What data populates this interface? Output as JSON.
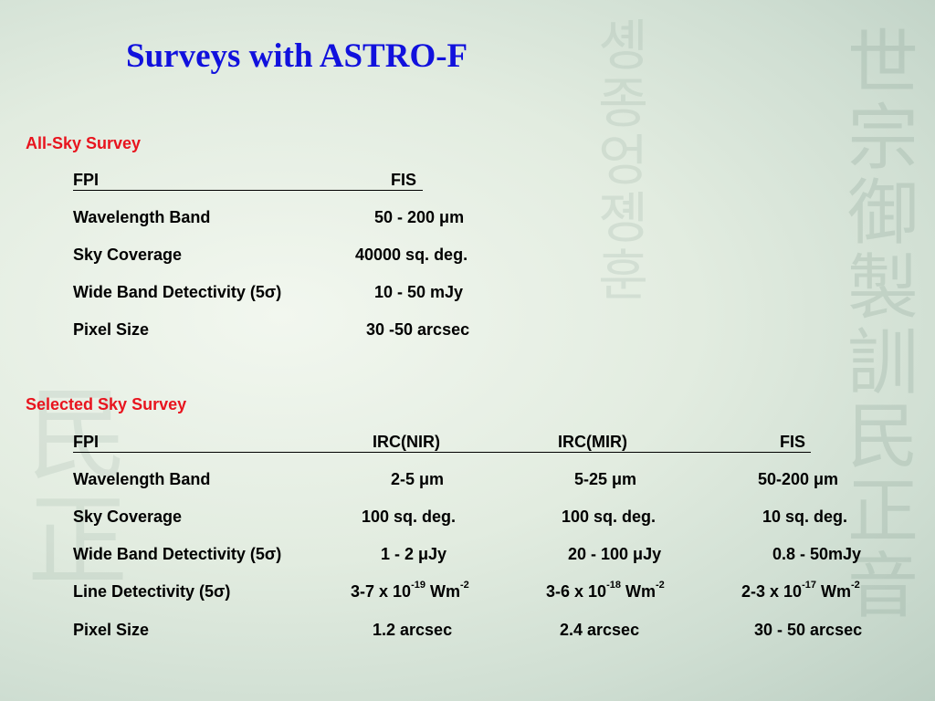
{
  "title": "Surveys with ASTRO-F",
  "all_sky": {
    "heading": "All-Sky Survey",
    "header": {
      "fpi": "FPI",
      "fis": "FIS"
    },
    "rows": [
      {
        "label": "Wavelength Band",
        "value": "50 - 200 μm"
      },
      {
        "label": "Sky Coverage",
        "value": "40000 sq. deg."
      },
      {
        "label": "Wide Band Detectivity (5σ)",
        "value": "10 - 50 mJy"
      },
      {
        "label": "Pixel Size",
        "value": "30 -50 arcsec"
      }
    ]
  },
  "selected": {
    "heading": "Selected Sky Survey",
    "header": {
      "fpi": "FPI",
      "nir": "IRC(NIR)",
      "mir": "IRC(MIR)",
      "fis": "FIS"
    },
    "rows": [
      {
        "label": "Wavelength Band",
        "nir": "2-5 μm",
        "mir": "5-25 μm",
        "fis": "50-200 μm"
      },
      {
        "label": "Sky Coverage",
        "nir": "100 sq. deg.",
        "mir": "100 sq. deg.",
        "fis": "10 sq. deg."
      },
      {
        "label": "Wide Band Detectivity (5σ)",
        "nir": "1 - 2 μJy",
        "mir": "20 - 100 μJy",
        "fis": "0.8 - 50mJy"
      }
    ],
    "line_detectivity": {
      "label": "Line Detectivity (5σ)",
      "nir": {
        "base": "3-7 x 10",
        "exp": "-19",
        "unit": " Wm",
        "unit_exp": "-2"
      },
      "mir": {
        "base": "3-6 x 10",
        "exp": "-18",
        "unit": " Wm",
        "unit_exp": "-2"
      },
      "fis": {
        "base": "2-3 x 10",
        "exp": "-17",
        "unit": " Wm",
        "unit_exp": "-2"
      }
    },
    "pixel_row": {
      "label": "Pixel Size",
      "nir": "1.2 arcsec",
      "mir": "2.4 arcsec",
      "fis": "30 - 50 arcsec"
    }
  }
}
